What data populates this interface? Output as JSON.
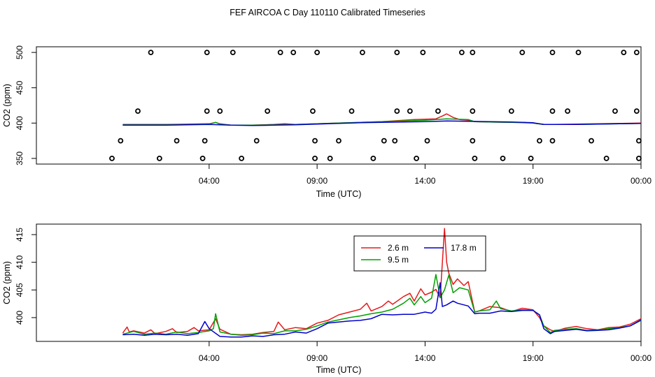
{
  "title": "FEF AIRCOA C  Day 110110  Calibrated Timeseries",
  "chart_data": [
    {
      "type": "line",
      "panel": "top",
      "xlabel": "Time (UTC)",
      "ylabel": "CO2 (ppm)",
      "xlim": [
        -4,
        24
      ],
      "ylim": [
        342,
        508
      ],
      "xticks": [
        {
          "v": 4,
          "label": "04:00"
        },
        {
          "v": 9,
          "label": "09:00"
        },
        {
          "v": 14,
          "label": "14:00"
        },
        {
          "v": 19,
          "label": "19:00"
        },
        {
          "v": 24,
          "label": "00:00"
        }
      ],
      "yticks": [
        350,
        400,
        450,
        500
      ],
      "calibration_points": [
        [
          -0.5,
          350
        ],
        [
          1.7,
          350
        ],
        [
          3.7,
          350
        ],
        [
          5.5,
          350
        ],
        [
          8.9,
          350
        ],
        [
          9.6,
          350
        ],
        [
          11.6,
          350
        ],
        [
          13.6,
          350
        ],
        [
          16.3,
          350
        ],
        [
          17.6,
          350
        ],
        [
          18.9,
          350
        ],
        [
          22.4,
          350
        ],
        [
          23.9,
          350
        ],
        [
          -0.1,
          375
        ],
        [
          2.5,
          375
        ],
        [
          3.8,
          375
        ],
        [
          6.2,
          375
        ],
        [
          8.9,
          375
        ],
        [
          10.0,
          375
        ],
        [
          12.1,
          375
        ],
        [
          12.6,
          375
        ],
        [
          14.1,
          375
        ],
        [
          16.2,
          375
        ],
        [
          19.3,
          375
        ],
        [
          19.9,
          375
        ],
        [
          21.7,
          375
        ],
        [
          23.9,
          375
        ],
        [
          0.7,
          417
        ],
        [
          3.9,
          417
        ],
        [
          4.5,
          417
        ],
        [
          6.7,
          417
        ],
        [
          8.8,
          417
        ],
        [
          10.6,
          417
        ],
        [
          12.7,
          417
        ],
        [
          13.3,
          417
        ],
        [
          14.6,
          417
        ],
        [
          16.2,
          417
        ],
        [
          18.0,
          417
        ],
        [
          19.9,
          417
        ],
        [
          20.6,
          417
        ],
        [
          22.8,
          417
        ],
        [
          23.8,
          417
        ],
        [
          1.3,
          500
        ],
        [
          3.9,
          500
        ],
        [
          5.1,
          500
        ],
        [
          7.3,
          500
        ],
        [
          7.9,
          500
        ],
        [
          9.0,
          500
        ],
        [
          11.1,
          500
        ],
        [
          12.7,
          500
        ],
        [
          13.9,
          500
        ],
        [
          15.7,
          500
        ],
        [
          16.2,
          500
        ],
        [
          18.5,
          500
        ],
        [
          19.9,
          500
        ],
        [
          21.1,
          500
        ],
        [
          23.2,
          500
        ],
        [
          23.8,
          500
        ]
      ],
      "series": [
        {
          "name": "2.6 m",
          "color": "#e31a1c",
          "x": [
            0,
            1,
            2,
            3,
            4,
            4.3,
            4.5,
            5,
            6,
            7,
            7.5,
            8,
            9,
            10,
            11,
            12,
            13,
            13.5,
            14,
            14.5,
            14.8,
            15,
            15.3,
            15.6,
            16,
            16.3,
            17,
            18,
            18.5,
            19,
            19.5,
            20,
            21,
            22,
            23,
            24
          ],
          "y": [
            398,
            398,
            398,
            398.5,
            399,
            401,
            399,
            397,
            397,
            398,
            399,
            398,
            399,
            400,
            401,
            402,
            404,
            405,
            405.5,
            406,
            410,
            413,
            408,
            405,
            404,
            402,
            401.5,
            401,
            401,
            400,
            398,
            398,
            398.5,
            399,
            399.5,
            400
          ]
        },
        {
          "name": "9.5 m",
          "color": "#00a000",
          "x": [
            0,
            1,
            2,
            3,
            4,
            4.3,
            4.5,
            5,
            6,
            7,
            8,
            9,
            10,
            11,
            12,
            13,
            14,
            14.5,
            15,
            15.5,
            16,
            16.3,
            17,
            18,
            19,
            19.5,
            20,
            21,
            22,
            23,
            24
          ],
          "y": [
            397.5,
            397.5,
            397.5,
            398,
            398.5,
            401,
            398.5,
            397,
            397,
            397.5,
            398,
            399,
            400,
            401,
            402,
            403,
            404,
            405,
            406,
            405.5,
            405,
            402,
            401.5,
            401,
            400,
            398,
            398,
            398,
            398.5,
            399,
            399.5
          ]
        },
        {
          "name": "17.8 m",
          "color": "#0000cc",
          "x": [
            0,
            1,
            2,
            3,
            4,
            5,
            6,
            7,
            8,
            9,
            10,
            11,
            12,
            13,
            14,
            15,
            16,
            17,
            18,
            19,
            19.5,
            20,
            21,
            22,
            23,
            24
          ],
          "y": [
            397,
            397,
            397,
            397.5,
            398,
            397,
            396.5,
            397,
            397.5,
            398.5,
            399.5,
            400.5,
            401,
            401.5,
            402,
            403,
            402.5,
            402,
            401.5,
            400.5,
            398,
            398,
            398,
            398.5,
            399,
            399.5
          ]
        }
      ]
    },
    {
      "type": "line",
      "panel": "bottom",
      "xlabel": "Time (UTC)",
      "ylabel": "CO2 (ppm)",
      "xlim": [
        -4,
        24
      ],
      "ylim": [
        395.7,
        416.9
      ],
      "xticks": [
        {
          "v": 4,
          "label": "04:00"
        },
        {
          "v": 9,
          "label": "09:00"
        },
        {
          "v": 14,
          "label": "14:00"
        },
        {
          "v": 19,
          "label": "19:00"
        },
        {
          "v": 24,
          "label": "00:00"
        }
      ],
      "yticks": [
        400,
        405,
        410,
        415
      ],
      "legend": {
        "position": "top-center",
        "ncol": 2
      },
      "series": [
        {
          "name": "2.6 m",
          "color": "#e31a1c",
          "x": [
            0,
            0.2,
            0.3,
            0.5,
            1,
            1.3,
            1.5,
            2,
            2.3,
            2.5,
            3,
            3.3,
            3.5,
            4,
            4.3,
            4.5,
            5,
            5.5,
            6,
            6.5,
            7,
            7.2,
            7.5,
            8,
            8.5,
            9,
            9.5,
            10,
            10.5,
            11,
            11.3,
            11.5,
            12,
            12.3,
            12.5,
            13,
            13.3,
            13.5,
            13.8,
            14,
            14.3,
            14.5,
            14.7,
            14.9,
            15.0,
            15.1,
            15.3,
            15.5,
            15.8,
            16,
            16.3,
            16.5,
            17,
            17.5,
            18,
            18.5,
            19,
            19.3,
            19.5,
            19.8,
            20,
            20.5,
            21,
            21.5,
            22,
            22.5,
            23,
            23.5,
            24
          ],
          "y": [
            397.2,
            398.3,
            397.4,
            397.6,
            397.2,
            397.8,
            397.1,
            397.5,
            398.0,
            397.3,
            397.5,
            398.2,
            397.6,
            397.8,
            399.8,
            397.9,
            397.0,
            396.9,
            397.0,
            397.3,
            397.5,
            399.2,
            397.8,
            398.2,
            398.0,
            399.0,
            399.5,
            400.5,
            401.0,
            401.5,
            402.6,
            401.2,
            402.0,
            403.0,
            402.4,
            403.8,
            404.4,
            403.0,
            405.2,
            404.1,
            404.6,
            405.1,
            403.6,
            416.1,
            410.0,
            408.0,
            406.0,
            407.0,
            405.8,
            406.5,
            401.0,
            401.2,
            402.0,
            401.8,
            401.1,
            401.7,
            401.4,
            400.0,
            398.5,
            397.8,
            397.5,
            398.1,
            398.4,
            398.0,
            397.8,
            398.2,
            398.3,
            398.8,
            399.8
          ]
        },
        {
          "name": "9.5 m",
          "color": "#00a000",
          "x": [
            0,
            0.5,
            1,
            1.5,
            2,
            2.5,
            3,
            3.5,
            4,
            4.2,
            4.3,
            4.5,
            5,
            5.5,
            6,
            6.5,
            7,
            7.5,
            8,
            8.5,
            9,
            9.5,
            10,
            10.5,
            11,
            11.5,
            12,
            12.5,
            13,
            13.3,
            13.5,
            13.8,
            14,
            14.3,
            14.5,
            14.7,
            14.9,
            15.1,
            15.3,
            15.6,
            16,
            16.3,
            16.5,
            17,
            17.3,
            17.5,
            18,
            18.5,
            19,
            19.3,
            19.5,
            19.8,
            20,
            20.5,
            21,
            21.5,
            22,
            22.5,
            23,
            23.5,
            24
          ],
          "y": [
            397.0,
            397.5,
            397.0,
            397.2,
            397.0,
            397.4,
            397.1,
            397.3,
            397.6,
            398.0,
            400.7,
            397.4,
            397.0,
            396.8,
            396.9,
            397.2,
            397.1,
            397.6,
            397.6,
            397.9,
            398.5,
            399.2,
            399.6,
            400.0,
            400.3,
            400.7,
            401.0,
            401.5,
            402.6,
            403.5,
            402.3,
            403.8,
            402.7,
            403.5,
            407.8,
            403.6,
            405.0,
            407.7,
            404.5,
            405.4,
            405.0,
            401.0,
            401.2,
            401.4,
            403.0,
            401.6,
            401.2,
            401.4,
            401.3,
            400.5,
            398.5,
            397.3,
            397.7,
            397.9,
            398.0,
            397.7,
            397.8,
            398.0,
            398.2,
            398.5,
            399.5
          ]
        },
        {
          "name": "17.8 m",
          "color": "#0000cc",
          "x": [
            0,
            0.5,
            1,
            1.5,
            2,
            2.5,
            3,
            3.5,
            3.8,
            4,
            4.5,
            5,
            5.5,
            6,
            6.5,
            7,
            7.5,
            8,
            8.5,
            9,
            9.5,
            10,
            10.5,
            11,
            11.5,
            12,
            12.5,
            13,
            13.5,
            14,
            14.3,
            14.5,
            14.7,
            14.8,
            15,
            15.3,
            15.5,
            16,
            16.3,
            16.5,
            17,
            17.5,
            18,
            18.5,
            19,
            19.3,
            19.5,
            19.8,
            20,
            20.5,
            21,
            21.5,
            22,
            22.5,
            23,
            23.5,
            24
          ],
          "y": [
            396.9,
            397.0,
            396.8,
            397.0,
            396.9,
            397.0,
            396.8,
            397.1,
            399.3,
            398.0,
            396.6,
            396.5,
            396.5,
            396.7,
            396.6,
            396.9,
            397.0,
            397.4,
            397.2,
            398.0,
            399.0,
            399.2,
            399.4,
            399.5,
            399.8,
            400.6,
            400.5,
            400.6,
            400.6,
            401.0,
            400.8,
            401.5,
            406.3,
            402.0,
            402.3,
            403.0,
            402.6,
            402.1,
            400.7,
            400.8,
            400.8,
            401.2,
            401.1,
            401.3,
            401.3,
            400.5,
            398.0,
            397.1,
            397.5,
            397.7,
            397.9,
            397.6,
            397.7,
            397.8,
            398.1,
            398.5,
            399.6
          ]
        }
      ]
    }
  ]
}
